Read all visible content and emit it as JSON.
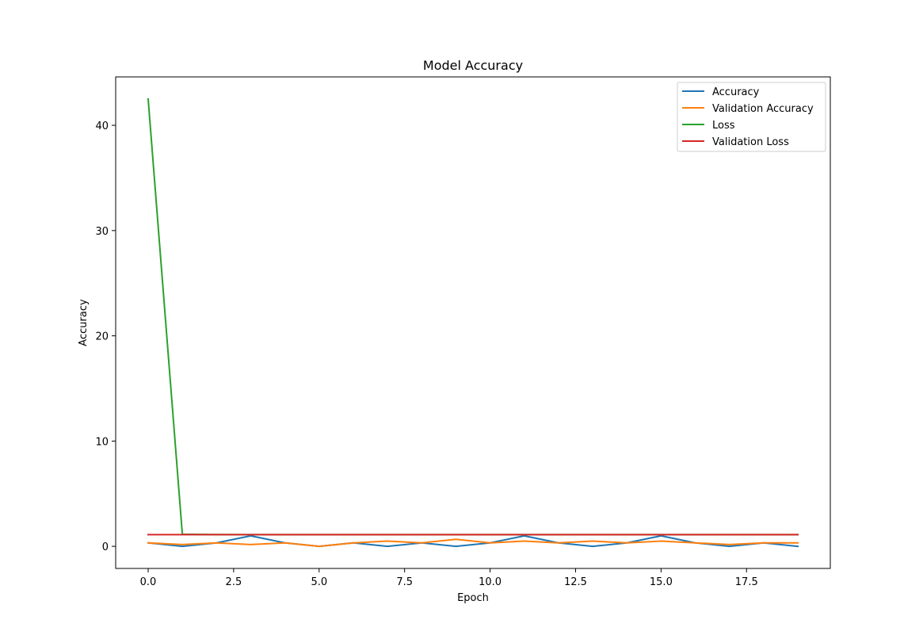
{
  "chart_data": {
    "type": "line",
    "title": "Model Accuracy",
    "xlabel": "Epoch",
    "ylabel": "Accuracy",
    "xlim": [
      -0.95,
      19.95
    ],
    "ylim": [
      -2.1,
      44.6
    ],
    "xticks": [
      0.0,
      2.5,
      5.0,
      7.5,
      10.0,
      12.5,
      15.0,
      17.5
    ],
    "xtick_labels": [
      "0.0",
      "2.5",
      "5.0",
      "7.5",
      "10.0",
      "12.5",
      "15.0",
      "17.5"
    ],
    "yticks": [
      0,
      10,
      20,
      30,
      40
    ],
    "ytick_labels": [
      "0",
      "10",
      "20",
      "30",
      "40"
    ],
    "grid": false,
    "legend_position": "top-right",
    "x": [
      0,
      1,
      2,
      3,
      4,
      5,
      6,
      7,
      8,
      9,
      10,
      11,
      12,
      13,
      14,
      15,
      16,
      17,
      18,
      19
    ],
    "series": [
      {
        "name": "Accuracy",
        "color": "#1f77b4",
        "values": [
          0.33,
          0.0,
          0.33,
          1.0,
          0.33,
          0.0,
          0.33,
          0.0,
          0.33,
          0.0,
          0.33,
          1.0,
          0.33,
          0.0,
          0.33,
          1.0,
          0.33,
          0.0,
          0.33,
          0.0
        ]
      },
      {
        "name": "Validation Accuracy",
        "color": "#ff7f0e",
        "values": [
          0.33,
          0.17,
          0.33,
          0.17,
          0.33,
          0.0,
          0.33,
          0.5,
          0.33,
          0.67,
          0.33,
          0.5,
          0.33,
          0.5,
          0.33,
          0.5,
          0.33,
          0.17,
          0.33,
          0.33
        ]
      },
      {
        "name": "Loss",
        "color": "#2ca02c",
        "values": [
          42.5,
          1.15,
          1.12,
          1.11,
          1.11,
          1.11,
          1.11,
          1.11,
          1.11,
          1.11,
          1.11,
          1.11,
          1.11,
          1.11,
          1.11,
          1.11,
          1.11,
          1.11,
          1.11,
          1.11
        ]
      },
      {
        "name": "Validation Loss",
        "color": "#d62728",
        "values": [
          1.11,
          1.11,
          1.11,
          1.11,
          1.11,
          1.11,
          1.11,
          1.11,
          1.11,
          1.11,
          1.11,
          1.11,
          1.11,
          1.11,
          1.11,
          1.11,
          1.11,
          1.11,
          1.11,
          1.11
        ]
      }
    ]
  }
}
